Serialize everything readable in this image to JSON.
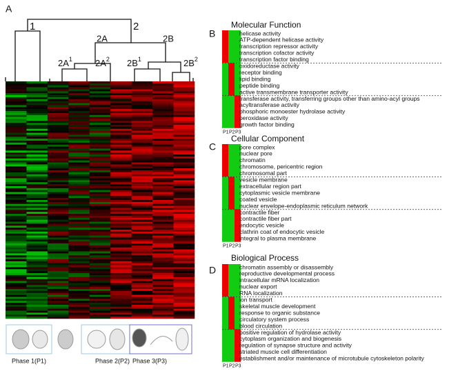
{
  "panel_labels": [
    "A",
    "B",
    "C",
    "D"
  ],
  "dendrogram": {
    "top": [
      "1",
      "2"
    ],
    "mid": [
      "2A",
      "2B"
    ],
    "leaves": [
      {
        "base": "2A",
        "sup": "1"
      },
      {
        "base": "2A",
        "sup": "2"
      },
      {
        "base": "2B",
        "sup": "1"
      },
      {
        "base": "2B",
        "sup": "2"
      }
    ]
  },
  "phases": [
    "Phase 1(P1)",
    "Phase 2(P2)",
    "Phase 3(P3)"
  ],
  "sections": [
    {
      "title": "Molecular Function",
      "columns": [
        "P1",
        "P2",
        "P3"
      ],
      "terms": [
        "helicase activity",
        "ATP-dependent helicase activity",
        "transcription repressor activity",
        "transcription cofactor activity",
        "transcription factor binding",
        "oxidoreductase activity",
        "receptor binding",
        "lipid binding",
        "peptide binding",
        "active transmembrane transporter activity",
        "transferase activity, transferring groups other than amino-acyl groups",
        "acyltransferase activity",
        "phosphoric monoester hydrolase activity",
        "peroxidase activity",
        "growth factor binding"
      ]
    },
    {
      "title": "Cellular Component",
      "columns": [
        "P1",
        "P2",
        "P3"
      ],
      "terms": [
        "pore complex",
        "nuclear pore",
        "chromatin",
        "chromosome, pericentric region",
        "chromosomal part",
        "vesicle membrane",
        "extracellular region part",
        "cytoplasmic vesicle membrane",
        "coated vesicle",
        "nuclear envelope-endoplasmic reticulum network",
        "contractile fiber",
        "contractile fiber part",
        "endocytic vesicle",
        "clathrin coat of endocytic vesicle",
        "integral to plasma membrane"
      ]
    },
    {
      "title": "Biological Process",
      "columns": [
        "P1",
        "P2",
        "P3"
      ],
      "terms": [
        "chromatin assembly or disassembly",
        "reproductive developmental process",
        "intracellular mRNA localization",
        "nuclear export",
        "RNA localization",
        "ion transport",
        "skeletal muscle development",
        "response to organic substance",
        "circulatory system process",
        "blood circulation",
        "positive regulation of hydrolase activity",
        "cytoplasm organization and biogenesis",
        "regulation of synapse structure and activity",
        "striated muscle cell differentiation",
        "establishment and/or maintenance of microtubule cytoskeleton polarity"
      ]
    }
  ]
}
